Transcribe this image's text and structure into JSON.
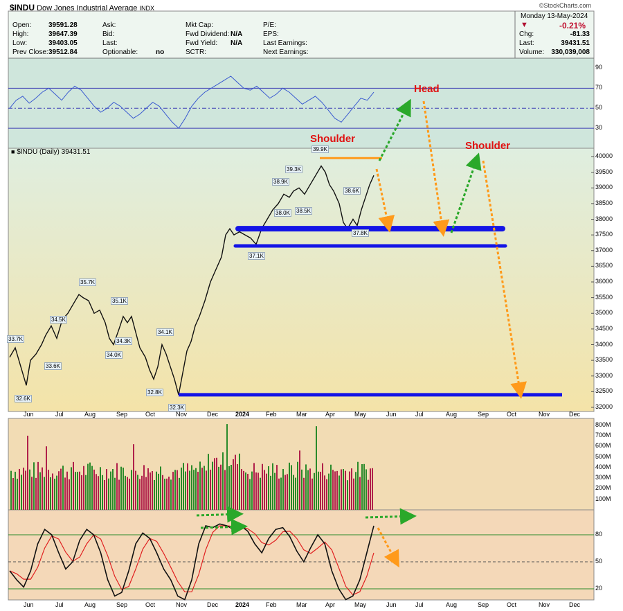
{
  "header": {
    "symbol": "$INDU",
    "name": "Dow Jones Industrial Average",
    "exchange": "INDX",
    "watermark": "©StockCharts.com",
    "date": "Monday  13-May-2024",
    "change_pct": "-0.21%",
    "down_arrow": "▼",
    "left_labels": [
      "Open:",
      "High:",
      "Low:",
      "Prev Close:"
    ],
    "left_values": [
      "39591.28",
      "39647.39",
      "39403.05",
      "39512.84"
    ],
    "mid1_labels": [
      "Ask:",
      "Bid:",
      "Last:",
      "Optionable:"
    ],
    "mid1_value_optionable": "no",
    "mid2_labels": [
      "Mkt Cap:",
      "Fwd Dividend:",
      "Fwd Yield:",
      "SCTR:"
    ],
    "mid2_values": [
      "N/A",
      "N/A"
    ],
    "mid3_labels": [
      "P/E:",
      "EPS:",
      "Last Earnings:",
      "Next Earnings:"
    ],
    "right_labels": [
      "Chg:",
      "Last:",
      "Volume:"
    ],
    "right_values": [
      "-81.33",
      "39431.51",
      "330,039,008"
    ]
  },
  "price_label": "$INDU (Daily) 39431.51",
  "annotations": {
    "shoulder_left": "Shoulder",
    "head": "Head",
    "shoulder_right": "Shoulder"
  },
  "colors": {
    "blue_line": "#1414e6",
    "orange": "#ff9a1a",
    "green": "#2aa82a",
    "rsi_band_bg": "#cfe6dc",
    "price_bg_top": "#dfeee0",
    "price_bg_bottom": "#f4e3a8",
    "volume_bg": "#f2dcb4",
    "stoch_bg": "#f4d8b8",
    "vol_up": "#2a8a2a",
    "vol_down": "#b0204a"
  },
  "chart_data": [
    {
      "type": "line",
      "panel": "RSI",
      "y_ticks": [
        "90",
        "70",
        "50",
        "30"
      ],
      "ylim": [
        10,
        100
      ],
      "reference_lines": [
        70,
        50,
        30
      ]
    },
    {
      "type": "line",
      "panel": "price",
      "y_ticks": [
        "40000",
        "39500",
        "39000",
        "38500",
        "38000",
        "37500",
        "37000",
        "36500",
        "36000",
        "35500",
        "35000",
        "34500",
        "34000",
        "33500",
        "33000",
        "32500",
        "32000"
      ],
      "ylim": [
        32000,
        40000
      ],
      "x_ticks": [
        "Jun",
        "Jul",
        "Aug",
        "Sep",
        "Oct",
        "Nov",
        "Dec",
        "2024",
        "Feb",
        "Mar",
        "Apr",
        "May",
        "Jun",
        "Jul",
        "Aug",
        "Sep",
        "Oct",
        "Nov",
        "Dec"
      ],
      "point_labels": [
        {
          "text": "33.7K",
          "value": 33700
        },
        {
          "text": "32.6K",
          "value": 32600
        },
        {
          "text": "33.6K",
          "value": 33600
        },
        {
          "text": "34.5K",
          "value": 34500
        },
        {
          "text": "35.7K",
          "value": 35700
        },
        {
          "text": "35.1K",
          "value": 35100
        },
        {
          "text": "34.3K",
          "value": 34300
        },
        {
          "text": "34.0K",
          "value": 34000
        },
        {
          "text": "34.1K",
          "value": 34100
        },
        {
          "text": "32.8K",
          "value": 32800
        },
        {
          "text": "32.3K",
          "value": 32300
        },
        {
          "text": "38.0K",
          "value": 38000
        },
        {
          "text": "37.1K",
          "value": 37100
        },
        {
          "text": "38.9K",
          "value": 38900
        },
        {
          "text": "39.3K",
          "value": 39300
        },
        {
          "text": "38.5K",
          "value": 38500
        },
        {
          "text": "39.9K",
          "value": 39900
        },
        {
          "text": "38.6K",
          "value": 38600
        },
        {
          "text": "37.8K",
          "value": 37800
        }
      ],
      "support_levels": [
        37700,
        37150,
        32400
      ],
      "neckline_top": 39950
    },
    {
      "type": "bar",
      "panel": "volume",
      "y_ticks": [
        "800M",
        "700M",
        "600M",
        "500M",
        "400M",
        "300M",
        "200M",
        "100M"
      ],
      "ylim": [
        0,
        850
      ]
    },
    {
      "type": "line",
      "panel": "stochastic",
      "y_ticks": [
        "80",
        "50",
        "20"
      ],
      "ylim": [
        0,
        100
      ],
      "reference_lines": [
        80,
        50,
        20
      ],
      "x_ticks": [
        "Jun",
        "Jul",
        "Aug",
        "Sep",
        "Oct",
        "Nov",
        "Dec",
        "2024",
        "Feb",
        "Mar",
        "Apr",
        "May",
        "Jun",
        "Jul",
        "Aug",
        "Sep",
        "Oct",
        "Nov",
        "Dec"
      ]
    }
  ]
}
